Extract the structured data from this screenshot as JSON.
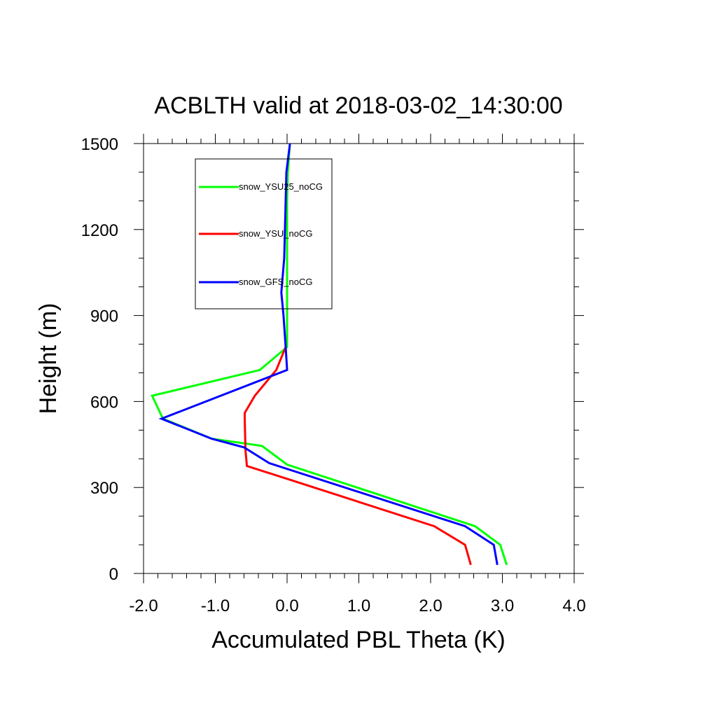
{
  "chart_data": {
    "type": "line",
    "title": "ACBLTH valid at 2018-03-02_14:30:00",
    "xlabel": "Accumulated PBL Theta (K)",
    "ylabel": "Height (m)",
    "xlim": [
      -2.0,
      4.0
    ],
    "ylim": [
      0,
      1500
    ],
    "xticks": [
      -2.0,
      -1.0,
      0.0,
      1.0,
      2.0,
      3.0,
      4.0
    ],
    "xtick_labels": [
      "-2.0",
      "-1.0",
      "0.0",
      "1.0",
      "2.0",
      "3.0",
      "4.0"
    ],
    "yticks": [
      0,
      300,
      600,
      900,
      1200,
      1500
    ],
    "ytick_labels": [
      "0",
      "300",
      "600",
      "900",
      "1200",
      "1500"
    ],
    "grid": false,
    "legend_position": "top-left",
    "series": [
      {
        "name": "snow_YSU25_noCG",
        "color": "#00ff00",
        "points": [
          [
            3.06,
            30
          ],
          [
            2.97,
            100
          ],
          [
            2.62,
            165
          ],
          [
            0.0,
            380
          ],
          [
            -0.35,
            445
          ],
          [
            -1.05,
            470
          ],
          [
            -1.73,
            540
          ],
          [
            -1.88,
            620
          ],
          [
            -0.38,
            710
          ],
          [
            0.0,
            790
          ],
          [
            0.0,
            900
          ],
          [
            0.0,
            1100
          ],
          [
            0.0,
            1300
          ],
          [
            0.01,
            1400
          ],
          [
            0.04,
            1500
          ]
        ]
      },
      {
        "name": "snow_YSU_noCG",
        "color": "#ff0000",
        "points": [
          [
            2.56,
            30
          ],
          [
            2.48,
            100
          ],
          [
            2.05,
            165
          ],
          [
            0.25,
            310
          ],
          [
            -0.56,
            375
          ],
          [
            -0.58,
            430
          ],
          [
            -0.59,
            540
          ],
          [
            -0.59,
            560
          ],
          [
            -0.45,
            620
          ],
          [
            -0.15,
            710
          ],
          [
            -0.02,
            790
          ]
        ]
      },
      {
        "name": "snow_GFS_noCG",
        "color": "#0000ff",
        "points": [
          [
            2.93,
            30
          ],
          [
            2.88,
            100
          ],
          [
            2.48,
            165
          ],
          [
            -0.25,
            385
          ],
          [
            -0.6,
            440
          ],
          [
            -1.05,
            470
          ],
          [
            -1.75,
            540
          ],
          [
            0.0,
            710
          ],
          [
            -0.02,
            790
          ],
          [
            -0.05,
            900
          ],
          [
            -0.08,
            980
          ],
          [
            -0.04,
            1100
          ],
          [
            -0.02,
            1300
          ],
          [
            -0.01,
            1400
          ],
          [
            0.04,
            1500
          ]
        ]
      }
    ]
  }
}
